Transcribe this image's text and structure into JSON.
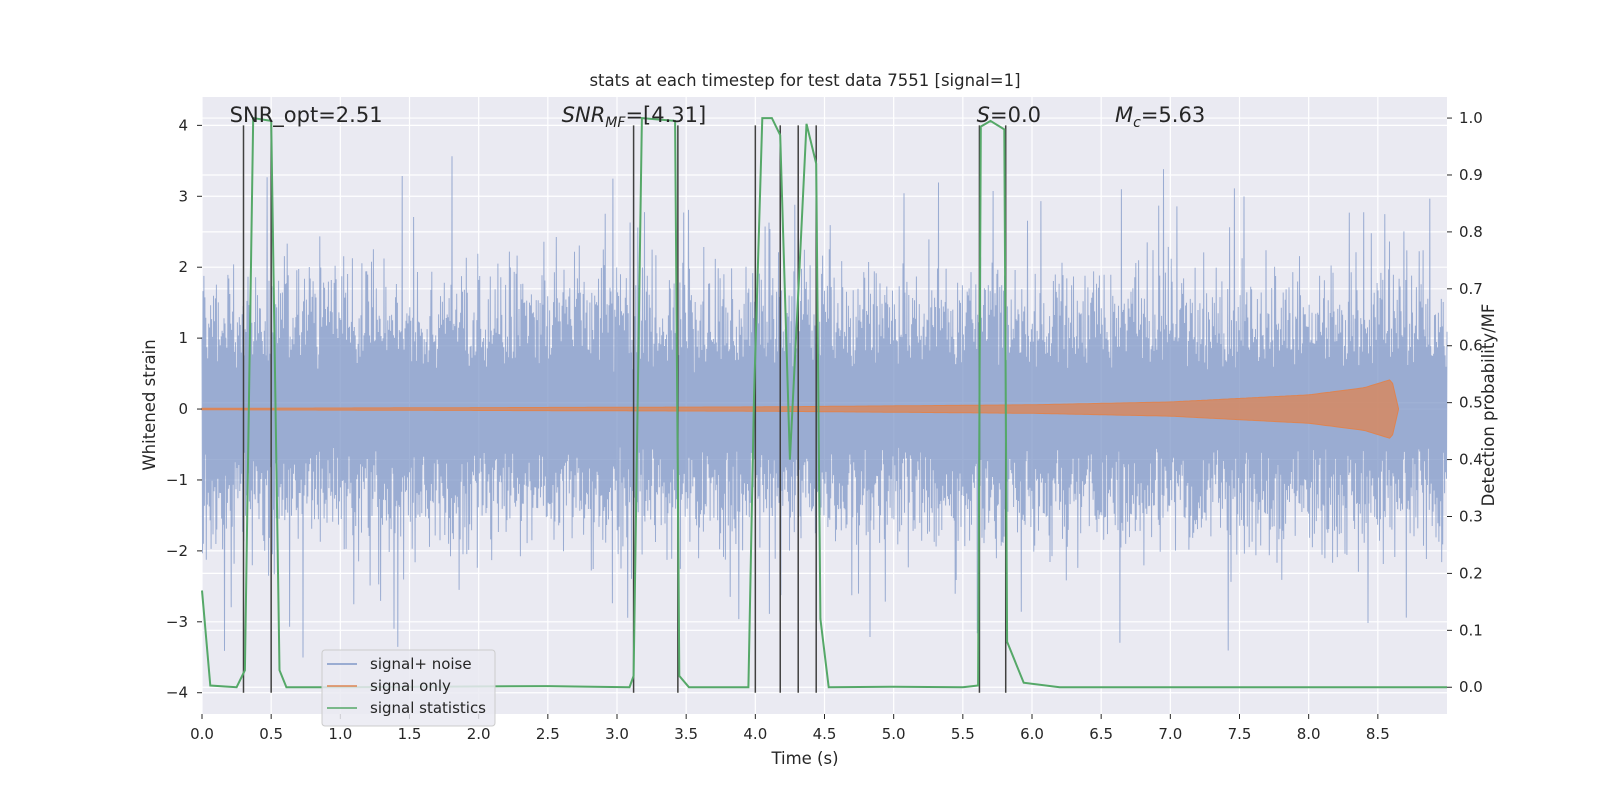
{
  "chart_data": {
    "type": "line",
    "title": "stats at each timestep for test data 7551 [signal=1]",
    "xlabel": "Time (s)",
    "ylabel": "Whitened strain",
    "y2label": "Detection probability/MF",
    "xlim": [
      0.0,
      9.0
    ],
    "ylim": [
      -4.3,
      4.4
    ],
    "y2lim": [
      -0.047,
      1.037
    ],
    "xticks": [
      0.0,
      0.5,
      1.0,
      1.5,
      2.0,
      2.5,
      3.0,
      3.5,
      4.0,
      4.5,
      5.0,
      5.5,
      6.0,
      6.5,
      7.0,
      7.5,
      8.0,
      8.5
    ],
    "xtick_labels": [
      "0.0",
      "0.5",
      "1.0",
      "1.5",
      "2.0",
      "2.5",
      "3.0",
      "3.5",
      "4.0",
      "4.5",
      "5.0",
      "5.5",
      "6.0",
      "6.5",
      "7.0",
      "7.5",
      "8.0",
      "8.5"
    ],
    "yticks": [
      -4,
      -3,
      -2,
      -1,
      0,
      1,
      2,
      3,
      4
    ],
    "ytick_labels": [
      "−4",
      "−3",
      "−2",
      "−1",
      "0",
      "1",
      "2",
      "3",
      "4"
    ],
    "y2ticks": [
      0.0,
      0.1,
      0.2,
      0.3,
      0.4,
      0.5,
      0.6,
      0.7,
      0.8,
      0.9,
      1.0
    ],
    "y2tick_labels": [
      "0.0",
      "0.1",
      "0.2",
      "0.3",
      "0.4",
      "0.5",
      "0.6",
      "0.7",
      "0.8",
      "0.9",
      "1.0"
    ],
    "grid": true,
    "legend_position": "lower-left",
    "series": [
      {
        "name": "signal+ noise",
        "color": "#7f97c7",
        "axis": "left",
        "style": "dense noise, amplitude roughly ±2.5 with peaks to about ±3.7",
        "x_range": [
          0.0,
          9.0
        ],
        "amplitude_envelope": 2.3,
        "peak_max": 3.7,
        "peak_min": -3.9
      },
      {
        "name": "signal only",
        "color": "#dd8452",
        "axis": "left",
        "style": "chirp growing towards merger",
        "x_range": [
          0.0,
          8.65
        ],
        "amplitude_points": [
          [
            0.0,
            0.01
          ],
          [
            4.0,
            0.03
          ],
          [
            6.0,
            0.06
          ],
          [
            7.0,
            0.1
          ],
          [
            8.0,
            0.2
          ],
          [
            8.4,
            0.3
          ],
          [
            8.6,
            0.42
          ],
          [
            8.65,
            0.0
          ]
        ]
      },
      {
        "name": "signal statistics",
        "color": "#55a868",
        "axis": "right",
        "x": [
          0.0,
          0.06,
          0.25,
          0.31,
          0.37,
          0.5,
          0.56,
          0.61,
          1.0,
          2.5,
          3.09,
          3.12,
          3.18,
          3.42,
          3.45,
          3.52,
          3.56,
          3.95,
          3.99,
          4.05,
          4.12,
          4.18,
          4.25,
          4.32,
          4.37,
          4.44,
          4.47,
          4.53,
          5.0,
          5.5,
          5.61,
          5.63,
          5.7,
          5.8,
          5.82,
          5.87,
          5.94,
          6.2,
          9.0
        ],
        "values": [
          0.17,
          0.003,
          0.0,
          0.03,
          1.0,
          0.995,
          0.03,
          0.0,
          0.0,
          0.002,
          0.0,
          0.02,
          1.0,
          0.995,
          0.02,
          0.0,
          0.0,
          0.0,
          0.51,
          1.0,
          1.0,
          0.97,
          0.4,
          0.74,
          0.99,
          0.92,
          0.12,
          0.0,
          0.001,
          0.0,
          0.003,
          0.985,
          0.995,
          0.98,
          0.08,
          0.05,
          0.008,
          0.0,
          0.0
        ]
      }
    ],
    "vertical_markers": {
      "color": "#404040",
      "x": [
        0.3,
        0.5,
        3.12,
        3.44,
        4.0,
        4.18,
        4.31,
        4.44,
        5.62,
        5.81
      ]
    },
    "annotations": [
      {
        "text": "SNR_opt=2.51",
        "x": 0.2,
        "y": 4.05
      },
      {
        "text": "SNR_MF=[4.31]",
        "x": 2.6,
        "y": 4.05
      },
      {
        "text": "S=0.0",
        "x": 5.6,
        "y": 4.05
      },
      {
        "text": "M_c=5.63",
        "x": 6.6,
        "y": 4.05
      }
    ],
    "colors": {
      "background": "#eaeaf2",
      "grid": "#ffffff",
      "text": "#262626"
    }
  }
}
